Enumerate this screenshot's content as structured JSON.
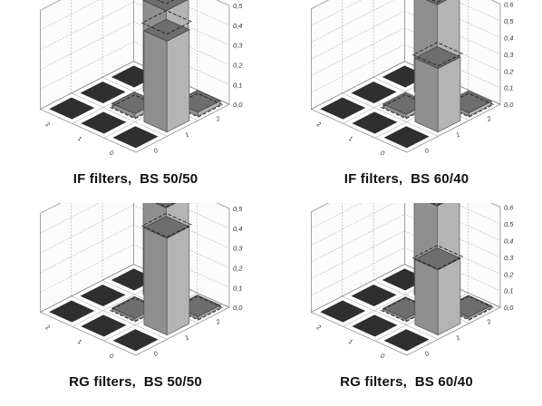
{
  "chart_data": [
    {
      "type": "bar",
      "title": "IF filters,  BS 50/50",
      "z_ticks": [
        "0,0",
        "0,1",
        "0,2",
        "0,3",
        "0,4",
        "0,5"
      ],
      "zlim": [
        0,
        0.5
      ],
      "row_ticks": [
        "2",
        "1",
        "0"
      ],
      "col_ticks": [
        "0",
        "1",
        "2"
      ],
      "bars": [
        {
          "row": "1",
          "col": "2",
          "value": 0.46
        },
        {
          "row": "0",
          "col": "1",
          "value": 0.46
        },
        {
          "row": "1",
          "col": "1",
          "value": 0.02
        },
        {
          "row": "0",
          "col": "2",
          "value": 0.02
        }
      ],
      "dashed_ideal": [
        {
          "row": "1",
          "col": "2",
          "value": 0.5
        },
        {
          "row": "0",
          "col": "1",
          "value": 0.5
        },
        {
          "row": "1",
          "col": "1",
          "value": 0.0
        },
        {
          "row": "0",
          "col": "2",
          "value": 0.0
        }
      ]
    },
    {
      "type": "bar",
      "title": "IF filters,  BS 60/40",
      "z_ticks": [
        "0,0",
        "0,1",
        "0,2",
        "0,3",
        "0,4",
        "0,5",
        "0,6"
      ],
      "zlim": [
        0,
        0.6
      ],
      "row_ticks": [
        "2",
        "1",
        "0"
      ],
      "col_ticks": [
        "0",
        "1",
        "2"
      ],
      "bars": [
        {
          "row": "1",
          "col": "2",
          "value": 0.58
        },
        {
          "row": "0",
          "col": "1",
          "value": 0.38
        },
        {
          "row": "1",
          "col": "1",
          "value": 0.02
        },
        {
          "row": "0",
          "col": "2",
          "value": 0.02
        }
      ],
      "dashed_ideal": [
        {
          "row": "1",
          "col": "2",
          "value": 0.6
        },
        {
          "row": "0",
          "col": "1",
          "value": 0.4
        },
        {
          "row": "1",
          "col": "1",
          "value": 0.0
        },
        {
          "row": "0",
          "col": "2",
          "value": 0.0
        }
      ]
    },
    {
      "type": "bar",
      "title": "RG filters,  BS 50/50",
      "z_ticks": [
        "0,0",
        "0,1",
        "0,2",
        "0,3",
        "0,4",
        "0,5"
      ],
      "zlim": [
        0,
        0.5
      ],
      "row_ticks": [
        "2",
        "1",
        "0"
      ],
      "col_ticks": [
        "0",
        "1",
        "2"
      ],
      "bars": [
        {
          "row": "1",
          "col": "2",
          "value": 0.49
        },
        {
          "row": "0",
          "col": "1",
          "value": 0.49
        },
        {
          "row": "1",
          "col": "1",
          "value": 0.01
        },
        {
          "row": "0",
          "col": "2",
          "value": 0.01
        }
      ],
      "dashed_ideal": [
        {
          "row": "1",
          "col": "2",
          "value": 0.5
        },
        {
          "row": "0",
          "col": "1",
          "value": 0.5
        },
        {
          "row": "1",
          "col": "1",
          "value": 0.0
        },
        {
          "row": "0",
          "col": "2",
          "value": 0.0
        }
      ]
    },
    {
      "type": "bar",
      "title": "RG filters,  BS 60/40",
      "z_ticks": [
        "0,0",
        "0,1",
        "0,2",
        "0,3",
        "0,4",
        "0,5",
        "0,6"
      ],
      "zlim": [
        0,
        0.6
      ],
      "row_ticks": [
        "2",
        "1",
        "0"
      ],
      "col_ticks": [
        "0",
        "1",
        "2"
      ],
      "bars": [
        {
          "row": "1",
          "col": "2",
          "value": 0.59
        },
        {
          "row": "0",
          "col": "1",
          "value": 0.39
        },
        {
          "row": "1",
          "col": "1",
          "value": 0.0
        },
        {
          "row": "0",
          "col": "2",
          "value": 0.0
        }
      ],
      "dashed_ideal": [
        {
          "row": "1",
          "col": "2",
          "value": 0.6
        },
        {
          "row": "0",
          "col": "1",
          "value": 0.4
        },
        {
          "row": "1",
          "col": "1",
          "value": 0.0
        },
        {
          "row": "0",
          "col": "2",
          "value": 0.0
        }
      ]
    }
  ],
  "colors": {
    "bar_front": "#8f8f8f",
    "bar_side": "#b4b4b4",
    "bar_top": "#6e6e6e",
    "floor_cell": "#2f2f2f",
    "grid": "#9a9a9a",
    "wall_edge": "#6a6a6a",
    "caption": "#111111"
  }
}
